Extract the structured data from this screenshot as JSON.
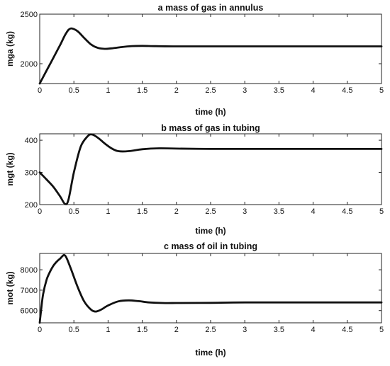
{
  "chart_data": [
    {
      "type": "line",
      "title": "a   mass of gas in annulus",
      "xlabel": "time (h)",
      "ylabel": "mga (kg)",
      "xlim": [
        0,
        5
      ],
      "ylim": [
        1800,
        2500
      ],
      "xticks": [
        "0",
        "0.5",
        "1",
        "1.5",
        "2",
        "2.5",
        "3",
        "3.5",
        "4",
        "4.5",
        "5"
      ],
      "yticks": [
        "2000",
        "2500"
      ],
      "series": [
        {
          "x": [
            0,
            0.1,
            0.2,
            0.3,
            0.38,
            0.45,
            0.55,
            0.65,
            0.75,
            0.85,
            0.95,
            1.05,
            1.2,
            1.35,
            1.5,
            1.7,
            2.0,
            2.5,
            3.0,
            4.0,
            5.0
          ],
          "y": [
            1800,
            1930,
            2060,
            2190,
            2300,
            2355,
            2330,
            2260,
            2195,
            2160,
            2150,
            2155,
            2168,
            2178,
            2180,
            2177,
            2175,
            2175,
            2175,
            2175,
            2175
          ]
        }
      ]
    },
    {
      "type": "line",
      "title": "b   mass of gas in tubing",
      "xlabel": "time (h)",
      "ylabel": "mgt (kg)",
      "xlim": [
        0,
        5
      ],
      "ylim": [
        200,
        420
      ],
      "xticks": [
        "0",
        "0.5",
        "1",
        "1.5",
        "2",
        "2.5",
        "3",
        "3.5",
        "4",
        "4.5",
        "5"
      ],
      "yticks": [
        "200",
        "300",
        "400"
      ],
      "series": [
        {
          "x": [
            0,
            0.1,
            0.2,
            0.3,
            0.37,
            0.42,
            0.5,
            0.6,
            0.7,
            0.76,
            0.85,
            0.95,
            1.05,
            1.15,
            1.3,
            1.5,
            1.75,
            2.0,
            2.5,
            3.0,
            4.0,
            5.0
          ],
          "y": [
            300,
            278,
            255,
            225,
            202,
            215,
            300,
            380,
            412,
            418,
            408,
            390,
            375,
            366,
            366,
            372,
            375,
            374,
            373,
            373,
            373,
            373
          ]
        }
      ]
    },
    {
      "type": "line",
      "title": "c   mass of oil in tubing",
      "xlabel": "time (h)",
      "ylabel": "mot (kg)",
      "xlim": [
        0,
        5
      ],
      "ylim": [
        5400,
        8800
      ],
      "xticks": [
        "0",
        "0.5",
        "1",
        "1.5",
        "2",
        "2.5",
        "3",
        "3.5",
        "4",
        "4.5",
        "5"
      ],
      "yticks": [
        "6000",
        "7000",
        "8000"
      ],
      "series": [
        {
          "x": [
            0,
            0.02,
            0.05,
            0.1,
            0.15,
            0.2,
            0.25,
            0.3,
            0.37,
            0.45,
            0.55,
            0.65,
            0.75,
            0.82,
            0.9,
            1.0,
            1.15,
            1.3,
            1.45,
            1.6,
            1.8,
            2.0,
            2.5,
            3.0,
            4.0,
            5.0
          ],
          "y": [
            5400,
            6000,
            6800,
            7500,
            7900,
            8200,
            8400,
            8550,
            8700,
            8100,
            7200,
            6450,
            6050,
            5950,
            6050,
            6250,
            6450,
            6500,
            6460,
            6400,
            6370,
            6370,
            6380,
            6400,
            6400,
            6400
          ]
        }
      ]
    }
  ]
}
